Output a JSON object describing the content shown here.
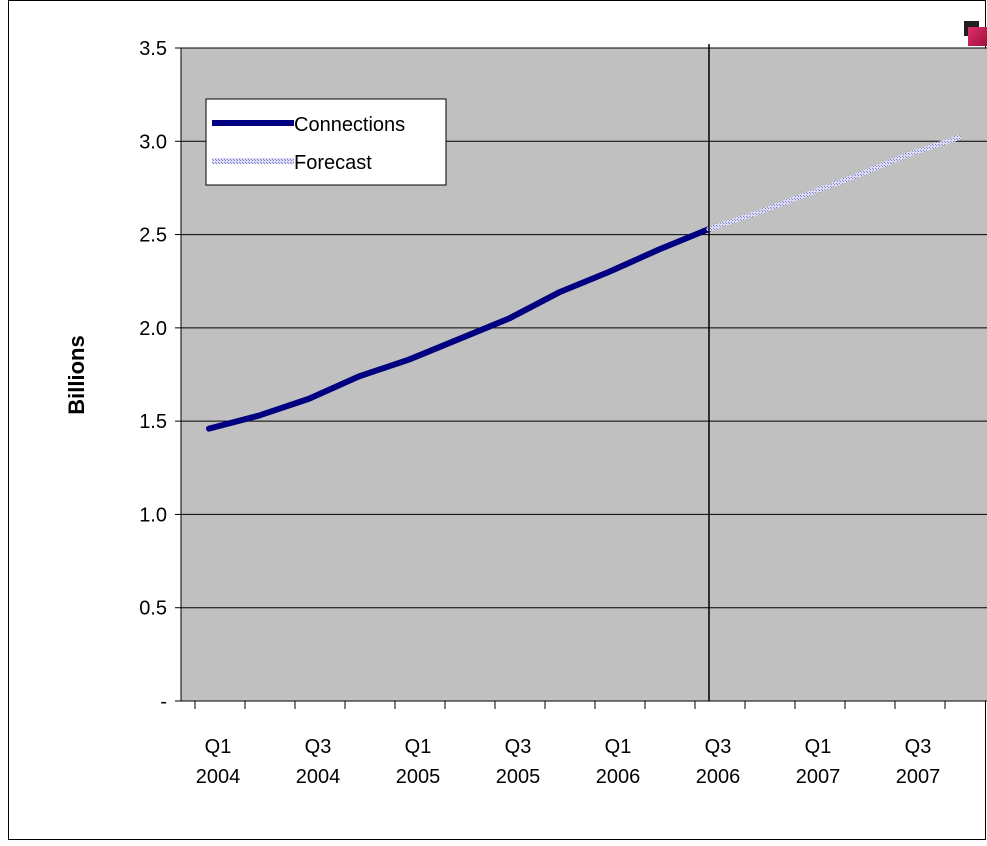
{
  "chart_data": {
    "type": "line",
    "ylabel": "Billions",
    "ylim": [
      0,
      3.5
    ],
    "yticks": [
      {
        "value": 0,
        "label": "-"
      },
      {
        "value": 0.5,
        "label": "0.5"
      },
      {
        "value": 1.0,
        "label": "1.0"
      },
      {
        "value": 1.5,
        "label": "1.5"
      },
      {
        "value": 2.0,
        "label": "2.0"
      },
      {
        "value": 2.5,
        "label": "2.5"
      },
      {
        "value": 3.0,
        "label": "3.0"
      },
      {
        "value": 3.5,
        "label": "3.5"
      }
    ],
    "x_categories": [
      "Q1 2004",
      "Q2 2004",
      "Q3 2004",
      "Q4 2004",
      "Q1 2005",
      "Q2 2005",
      "Q3 2005",
      "Q4 2005",
      "Q1 2006",
      "Q2 2006",
      "Q3 2006",
      "Q4 2006",
      "Q1 2007",
      "Q2 2007",
      "Q3 2007",
      "Q4 2007"
    ],
    "x_tick_labels": [
      {
        "index": 0,
        "lines": [
          "Q1",
          "2004"
        ]
      },
      {
        "index": 2,
        "lines": [
          "Q3",
          "2004"
        ]
      },
      {
        "index": 4,
        "lines": [
          "Q1",
          "2005"
        ]
      },
      {
        "index": 6,
        "lines": [
          "Q3",
          "2005"
        ]
      },
      {
        "index": 8,
        "lines": [
          "Q1",
          "2006"
        ]
      },
      {
        "index": 10,
        "lines": [
          "Q3",
          "2006"
        ]
      },
      {
        "index": 12,
        "lines": [
          "Q1",
          "2007"
        ]
      },
      {
        "index": 14,
        "lines": [
          "Q3",
          "2007"
        ]
      }
    ],
    "series": [
      {
        "name": "Connections",
        "color": "#000080",
        "points": [
          {
            "x": "Q1 2004",
            "y": 1.46
          },
          {
            "x": "Q2 2004",
            "y": 1.53
          },
          {
            "x": "Q3 2004",
            "y": 1.62
          },
          {
            "x": "Q4 2004",
            "y": 1.74
          },
          {
            "x": "Q1 2005",
            "y": 1.83
          },
          {
            "x": "Q2 2005",
            "y": 1.94
          },
          {
            "x": "Q3 2005",
            "y": 2.05
          },
          {
            "x": "Q4 2005",
            "y": 2.19
          },
          {
            "x": "Q1 2006",
            "y": 2.3
          },
          {
            "x": "Q2 2006",
            "y": 2.42
          },
          {
            "x": "Q3 2006",
            "y": 2.53
          }
        ]
      },
      {
        "name": "Forecast",
        "color": "#b8b8e8",
        "points": [
          {
            "x": "Q3 2006",
            "y": 2.53
          },
          {
            "x": "Q4 2006",
            "y": 2.62
          },
          {
            "x": "Q1 2007",
            "y": 2.72
          },
          {
            "x": "Q2 2007",
            "y": 2.82
          },
          {
            "x": "Q3 2007",
            "y": 2.93
          },
          {
            "x": "Q4 2007",
            "y": 3.02
          }
        ]
      }
    ],
    "divider_at": "Q3 2006",
    "grid": true,
    "plot_background": "#c0c0c0",
    "legend_position": "top-left"
  }
}
